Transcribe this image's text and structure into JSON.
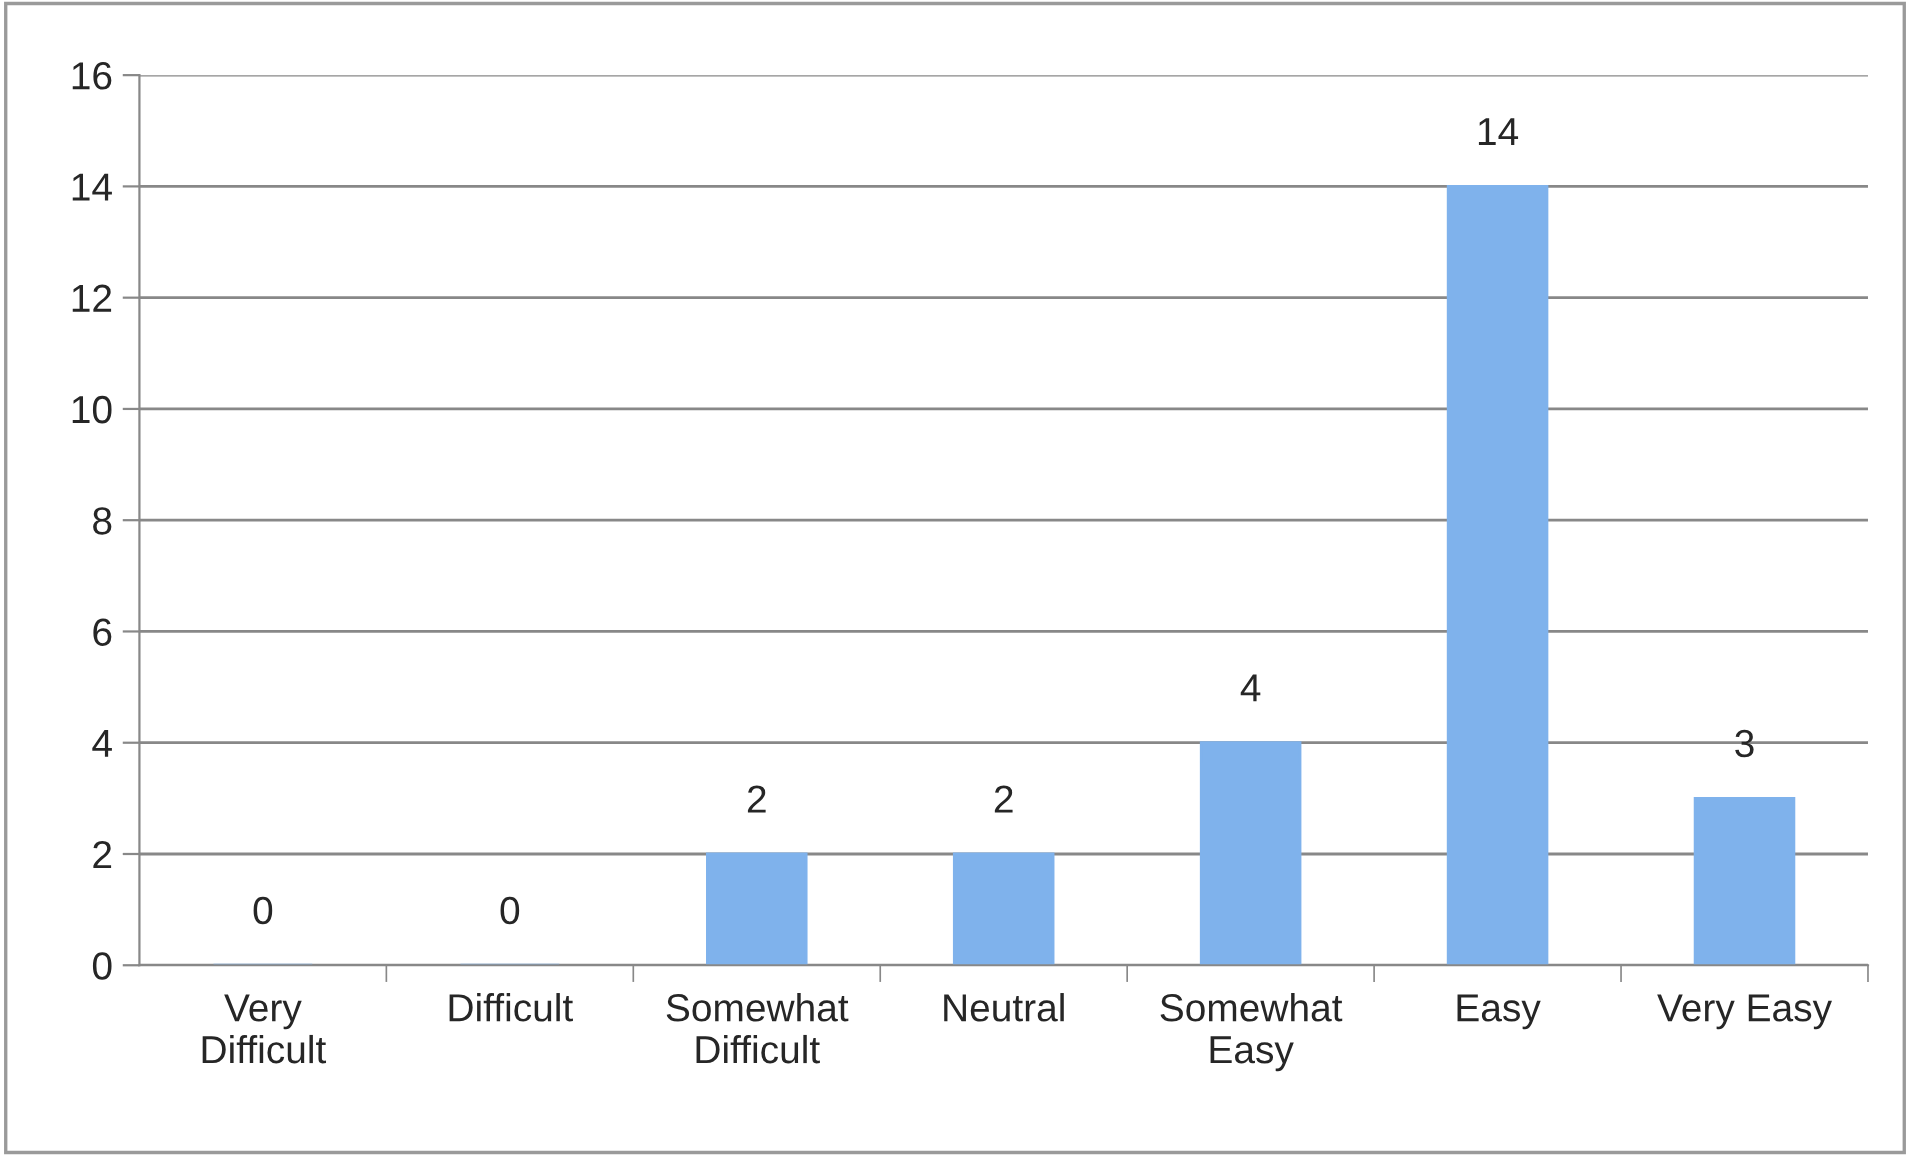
{
  "chart_data": {
    "type": "bar",
    "categories": [
      "Very\nDifficult",
      "Difficult",
      "Somewhat\nDifficult",
      "Neutral",
      "Somewhat\nEasy",
      "Easy",
      "Very Easy"
    ],
    "values": [
      0,
      0,
      2,
      2,
      4,
      14,
      3
    ],
    "color": "#7fb2ec",
    "ylim": [
      0,
      16
    ],
    "yticks": [
      0,
      2,
      4,
      6,
      8,
      10,
      12,
      14,
      16
    ],
    "grid": "y",
    "data_labels": true
  }
}
